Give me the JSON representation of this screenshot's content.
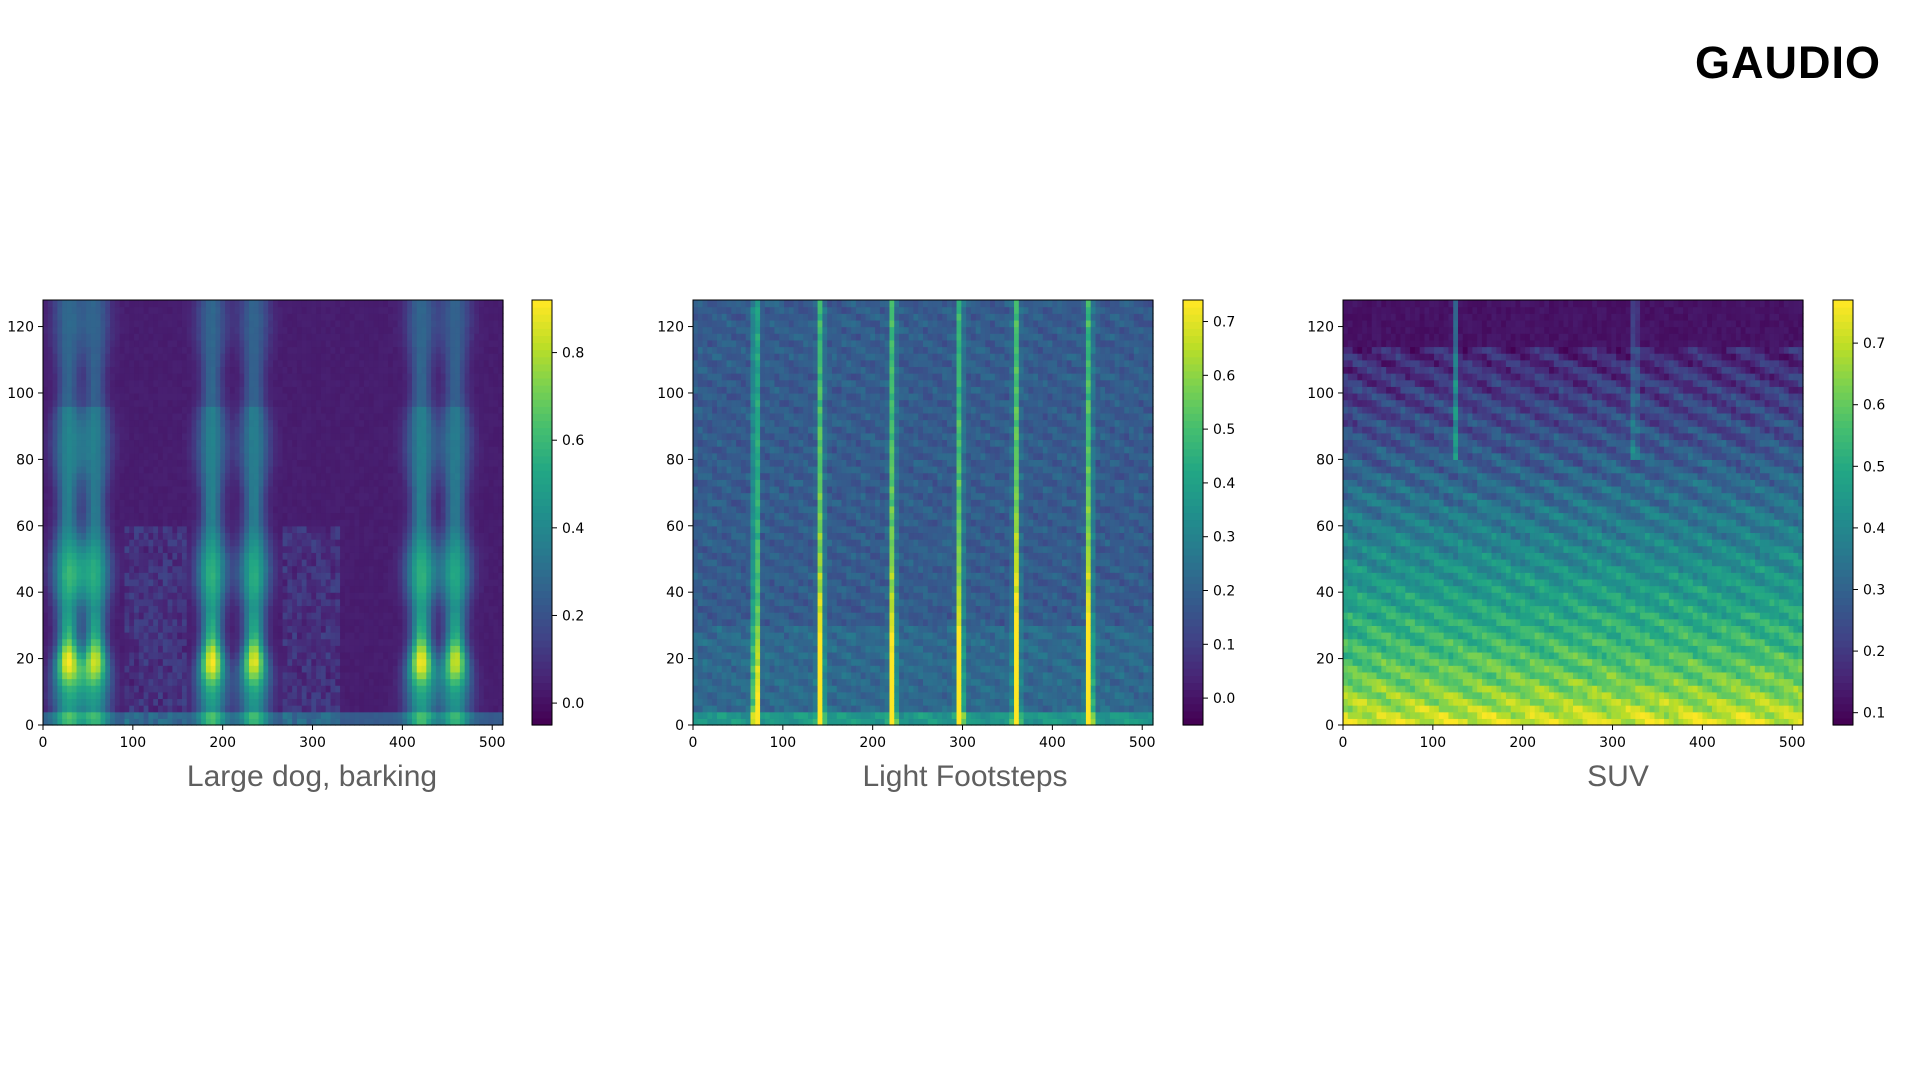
{
  "logo": {
    "text": "GAUDIO"
  },
  "colors": {
    "caption": "#5f5f5f",
    "frame": "#000000",
    "logo": "#000000"
  },
  "chart_data": [
    {
      "type": "heatmap",
      "colormap": "viridis",
      "caption": "Large dog, barking",
      "xlim": [
        0,
        512
      ],
      "ylim": [
        0,
        128
      ],
      "xticks": [
        "0",
        "100",
        "200",
        "300",
        "400",
        "500"
      ],
      "yticks": [
        "0",
        "20",
        "40",
        "60",
        "80",
        "100",
        "120"
      ],
      "colorbar": {
        "range": [
          -0.05,
          0.92
        ],
        "ticks": [
          "0.0",
          "0.2",
          "0.4",
          "0.6",
          "0.8"
        ]
      },
      "background_value": 0.0,
      "events": [
        {
          "x": 28,
          "peak": 0.92,
          "freq_extent": 128
        },
        {
          "x": 58,
          "peak": 0.85,
          "freq_extent": 128
        },
        {
          "x": 188,
          "peak": 0.92,
          "freq_extent": 128
        },
        {
          "x": 235,
          "peak": 0.88,
          "freq_extent": 128
        },
        {
          "x": 421,
          "peak": 0.92,
          "freq_extent": 128
        },
        {
          "x": 459,
          "peak": 0.85,
          "freq_extent": 128
        }
      ]
    },
    {
      "type": "heatmap",
      "colormap": "viridis",
      "caption": "Light Footsteps",
      "xlim": [
        0,
        512
      ],
      "ylim": [
        0,
        128
      ],
      "xticks": [
        "0",
        "100",
        "200",
        "300",
        "400",
        "500"
      ],
      "yticks": [
        "0",
        "20",
        "40",
        "60",
        "80",
        "100",
        "120"
      ],
      "colorbar": {
        "range": [
          -0.05,
          0.74
        ],
        "ticks": [
          "0.0",
          "0.1",
          "0.2",
          "0.3",
          "0.4",
          "0.5",
          "0.6",
          "0.7"
        ]
      },
      "background_value": 0.15,
      "events": [
        {
          "x": 70,
          "peak": 0.55
        },
        {
          "x": 142,
          "peak": 0.6
        },
        {
          "x": 222,
          "peak": 0.55
        },
        {
          "x": 297,
          "peak": 0.6
        },
        {
          "x": 360,
          "peak": 0.7
        },
        {
          "x": 441,
          "peak": 0.72
        }
      ]
    },
    {
      "type": "heatmap",
      "colormap": "viridis",
      "caption": "SUV",
      "xlim": [
        0,
        512
      ],
      "ylim": [
        0,
        128
      ],
      "xticks": [
        "0",
        "100",
        "200",
        "300",
        "400",
        "500"
      ],
      "yticks": [
        "0",
        "20",
        "40",
        "60",
        "80",
        "100",
        "120"
      ],
      "colorbar": {
        "range": [
          0.08,
          0.77
        ],
        "ticks": [
          "0.1",
          "0.2",
          "0.3",
          "0.4",
          "0.5",
          "0.6",
          "0.7"
        ]
      },
      "gradient": {
        "value_at_0": 0.75,
        "value_at_128": 0.1
      },
      "events": [
        {
          "x": 125,
          "peak": 0.3
        },
        {
          "x": 325,
          "peak": 0.35
        }
      ]
    }
  ]
}
